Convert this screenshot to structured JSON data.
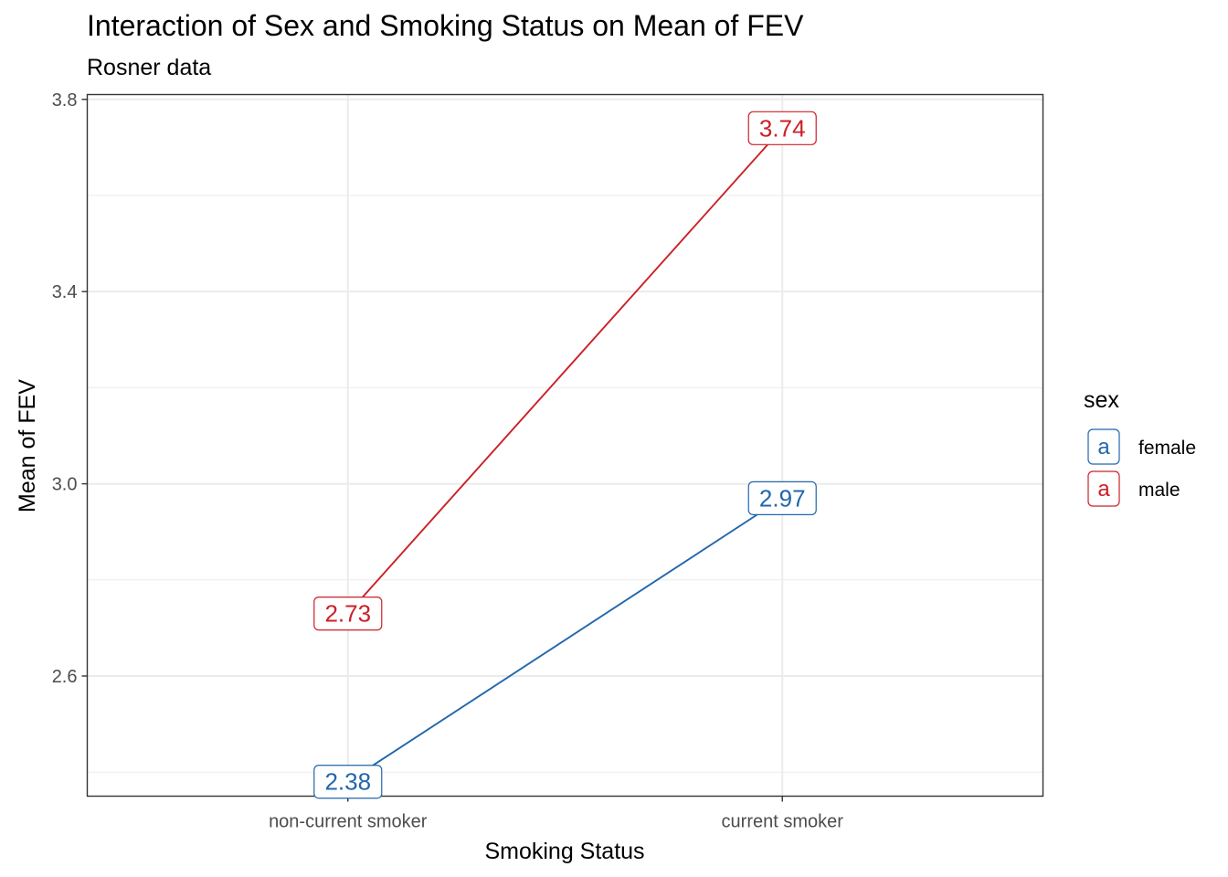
{
  "chart_data": {
    "type": "line",
    "title": "Interaction of Sex and Smoking Status on Mean of FEV",
    "subtitle": "Rosner data",
    "xlabel": "Smoking Status",
    "ylabel": "Mean of FEV",
    "categories": [
      "non-current smoker",
      "current smoker"
    ],
    "ylim": [
      2.35,
      3.81
    ],
    "yticks": [
      2.6,
      3.0,
      3.4,
      3.8
    ],
    "ytick_labels": [
      "2.6",
      "3.0",
      "3.4",
      "3.8"
    ],
    "grid": true,
    "legend": {
      "title": "sex",
      "position": "right",
      "key_glyph": "a"
    },
    "series": [
      {
        "name": "female",
        "color": "#2166AC",
        "values": [
          2.38,
          2.97
        ],
        "labels": [
          "2.38",
          "2.97"
        ]
      },
      {
        "name": "male",
        "color": "#CB2027",
        "values": [
          2.73,
          3.74
        ],
        "labels": [
          "2.73",
          "3.74"
        ]
      }
    ]
  }
}
